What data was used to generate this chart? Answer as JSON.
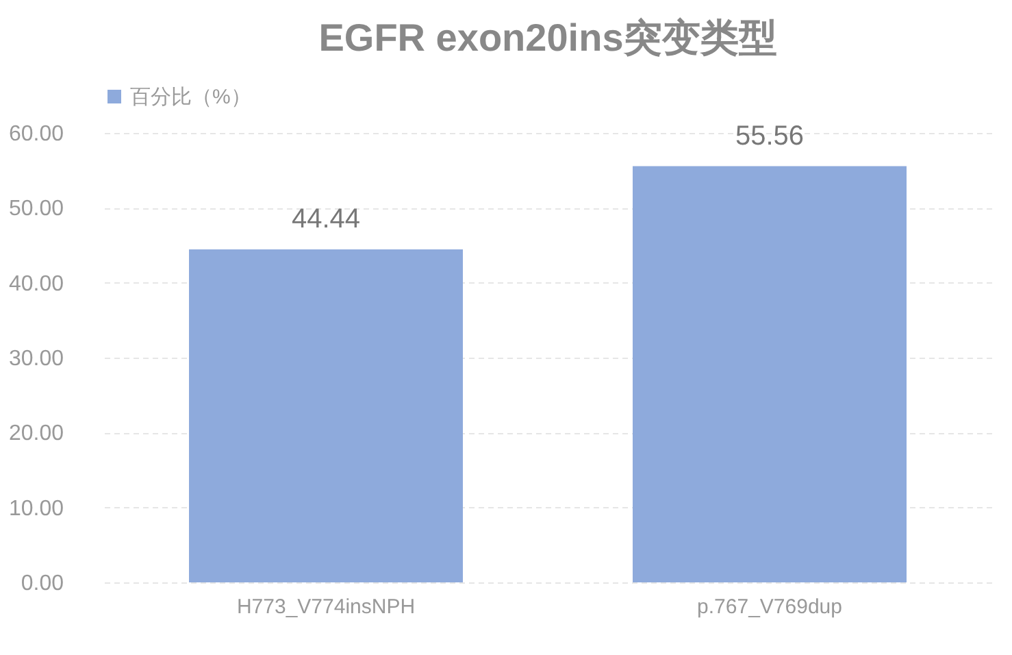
{
  "chart_data": {
    "type": "bar",
    "title": "EGFR exon20ins突变类型",
    "categories": [
      "H773_V774insNPH",
      "p.767_V769dup"
    ],
    "series": [
      {
        "name": "百分比（%）",
        "color": "#8eaadc",
        "values": [
          44.44,
          55.56
        ]
      }
    ],
    "ylim": [
      0,
      60
    ],
    "yticks": [
      {
        "value": 0,
        "label": "0.00"
      },
      {
        "value": 10,
        "label": "10.00"
      },
      {
        "value": 20,
        "label": "20.00"
      },
      {
        "value": 30,
        "label": "30.00"
      },
      {
        "value": 40,
        "label": "40.00"
      },
      {
        "value": 50,
        "label": "50.00"
      },
      {
        "value": 60,
        "label": "60.00"
      }
    ],
    "grid": "y",
    "legend": "top",
    "data_labels": true
  }
}
